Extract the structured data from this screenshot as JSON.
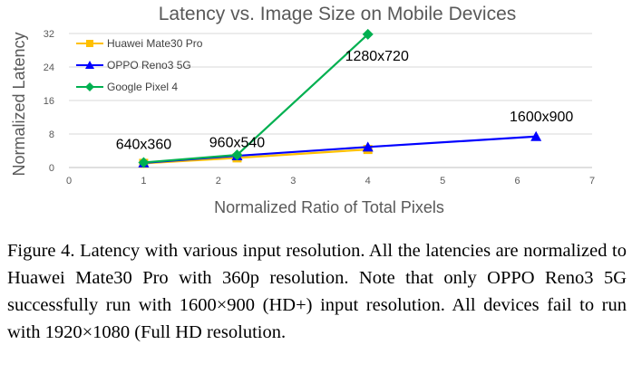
{
  "chart_data": {
    "type": "line",
    "title": "Latency vs. Image Size on Mobile Devices",
    "xlabel": "Normalized Ratio of Total Pixels",
    "ylabel": "Normalized Latency",
    "xlim": [
      0,
      7
    ],
    "ylim": [
      0,
      32
    ],
    "xticks": [
      "0",
      "1",
      "2",
      "3",
      "4",
      "5",
      "6",
      "7"
    ],
    "yticks": [
      "0",
      "8",
      "16",
      "24",
      "32"
    ],
    "grid": "horizontal",
    "legend_position": "top-left",
    "series": [
      {
        "name": "Huawei Mate30 Pro",
        "color": "#ffc000",
        "marker": "square",
        "points": [
          [
            1,
            1.0
          ],
          [
            2.25,
            2.3
          ],
          [
            4,
            4.3
          ]
        ]
      },
      {
        "name": "OPPO Reno3 5G",
        "color": "#0000ff",
        "marker": "triangle",
        "points": [
          [
            1,
            1.1
          ],
          [
            2.25,
            2.8
          ],
          [
            4,
            4.9
          ],
          [
            6.25,
            7.4
          ]
        ]
      },
      {
        "name": "Google Pixel 4",
        "color": "#00b050",
        "marker": "diamond",
        "points": [
          [
            1,
            1.2
          ],
          [
            2.25,
            3.0
          ],
          [
            4,
            31.8
          ]
        ]
      }
    ],
    "annotations": [
      {
        "text": "640x360",
        "x": 1,
        "y": 1.0
      },
      {
        "text": "960x540",
        "x": 2.25,
        "y": 2.3
      },
      {
        "text": "1280x720",
        "x": 4,
        "y": 31.8
      },
      {
        "text": "1600x900",
        "x": 6.25,
        "y": 7.4
      }
    ]
  },
  "caption": {
    "label": "Figure 4.",
    "text": " Latency with various input resolution.  All the latencies are normalized to Huawei Mate30 Pro with 360p resolution. Note that only OPPO Reno3 5G successfully run with 1600×900 (HD+) input resolution.  All devices fail to run with 1920×1080 (Full HD resolution."
  }
}
